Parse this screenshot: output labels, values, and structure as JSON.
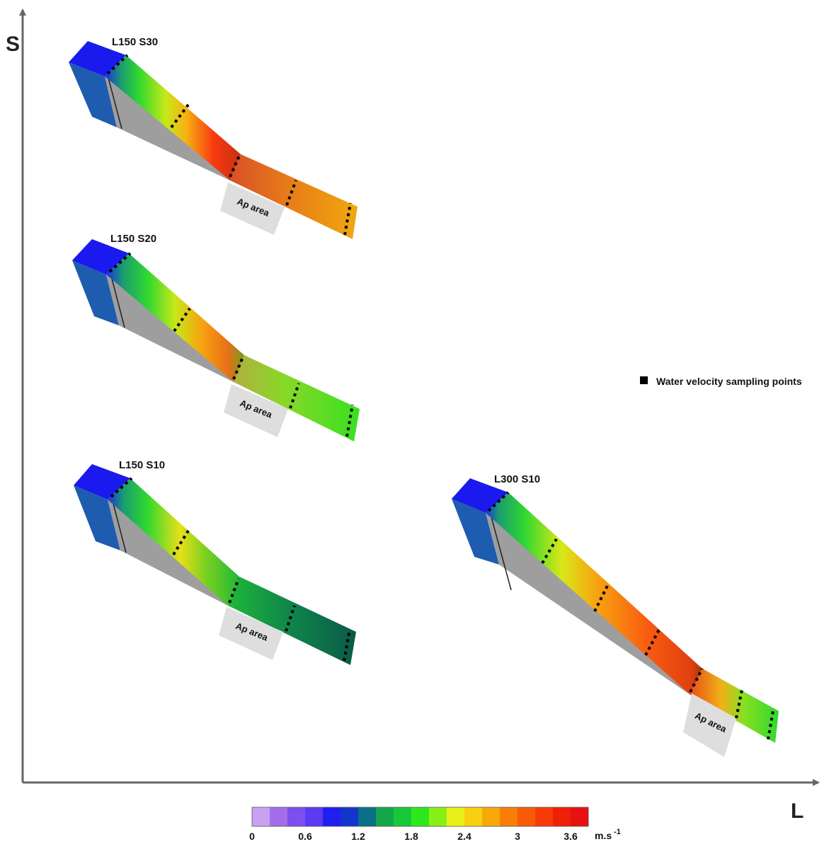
{
  "axes": {
    "y_letter": "S",
    "x_letter": "L"
  },
  "models": [
    {
      "id": "l150-s30",
      "label": "L150 S30",
      "area_label": "Ap area"
    },
    {
      "id": "l150-s20",
      "label": "L150 S20",
      "area_label": "Ap area"
    },
    {
      "id": "l150-s10",
      "label": "L150 S10",
      "area_label": "Ap area"
    },
    {
      "id": "l300-s10",
      "label": "L300 S10",
      "area_label": "Ap area"
    }
  ],
  "legend": {
    "marker_label": "Water velocity sampling points"
  },
  "colorbar": {
    "unit": "m.s",
    "unit_exponent": "-1",
    "tick_labels": [
      "0",
      "0.6",
      "1.2",
      "1.8",
      "2.4",
      "3",
      "3.6"
    ],
    "colors": [
      "#c8a2f0",
      "#a56de8",
      "#7d4ef0",
      "#5a3af2",
      "#1f1ff0",
      "#1236cc",
      "#0b7085",
      "#12a84a",
      "#18c83a",
      "#2ee81e",
      "#88f018",
      "#e8f018",
      "#f8d010",
      "#f8a808",
      "#f87e08",
      "#f85a08",
      "#f83a08",
      "#ee2008",
      "#e81010"
    ]
  }
}
